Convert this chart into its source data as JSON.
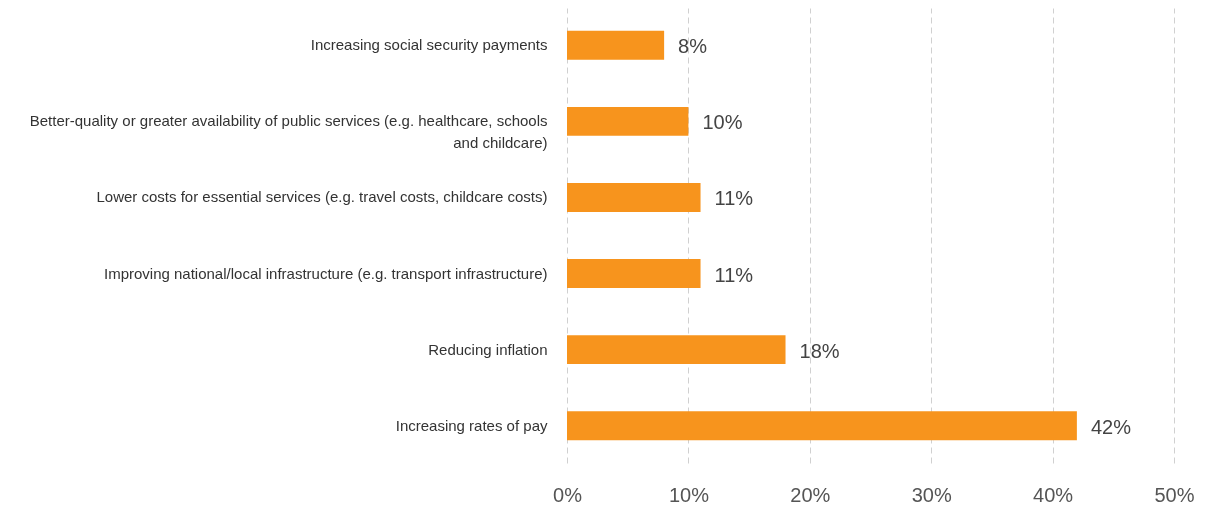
{
  "chart_data": {
    "type": "bar",
    "orientation": "horizontal",
    "categories": [
      "Increasing social security payments",
      "Better-quality or greater availability of public services (e.g. healthcare, schools and childcare)",
      "Lower costs for essential services (e.g. travel costs, childcare costs)",
      "Improving national/local infrastructure (e.g. transport infrastructure)",
      "Reducing inflation",
      "Increasing rates of pay"
    ],
    "values": [
      8,
      10,
      11,
      11,
      18,
      42
    ],
    "value_labels": [
      "8%",
      "10%",
      "11%",
      "11%",
      "18%",
      "42%"
    ],
    "color": "#f7941d",
    "xlim": [
      0,
      50
    ],
    "xticks": [
      {
        "value": 0,
        "label": "0%"
      },
      {
        "value": 10,
        "label": "10%"
      },
      {
        "value": 20,
        "label": "20%"
      },
      {
        "value": 30,
        "label": "30%"
      },
      {
        "value": 40,
        "label": "40%"
      },
      {
        "value": 50,
        "label": "50%"
      }
    ],
    "grid": "x"
  }
}
